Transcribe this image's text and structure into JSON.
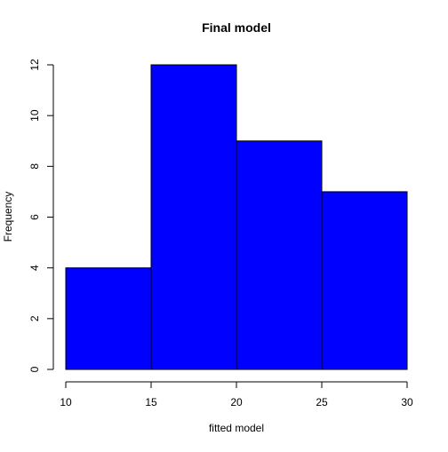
{
  "chart_data": {
    "type": "bar",
    "title": "Final model",
    "xlabel": "fitted model",
    "ylabel": "Frequency",
    "bins": [
      {
        "from": 10,
        "to": 15,
        "count": 4
      },
      {
        "from": 15,
        "to": 20,
        "count": 12
      },
      {
        "from": 20,
        "to": 25,
        "count": 9
      },
      {
        "from": 25,
        "to": 30,
        "count": 7
      }
    ],
    "xlim": [
      10,
      30
    ],
    "ylim": [
      0,
      12
    ],
    "x_ticks": [
      "10",
      "15",
      "20",
      "25",
      "30"
    ],
    "y_ticks": [
      "0",
      "2",
      "4",
      "6",
      "8",
      "10",
      "12"
    ],
    "bar_color": "#0000FF",
    "bar_border_color": "#000000",
    "grid": false,
    "legend": "none"
  }
}
